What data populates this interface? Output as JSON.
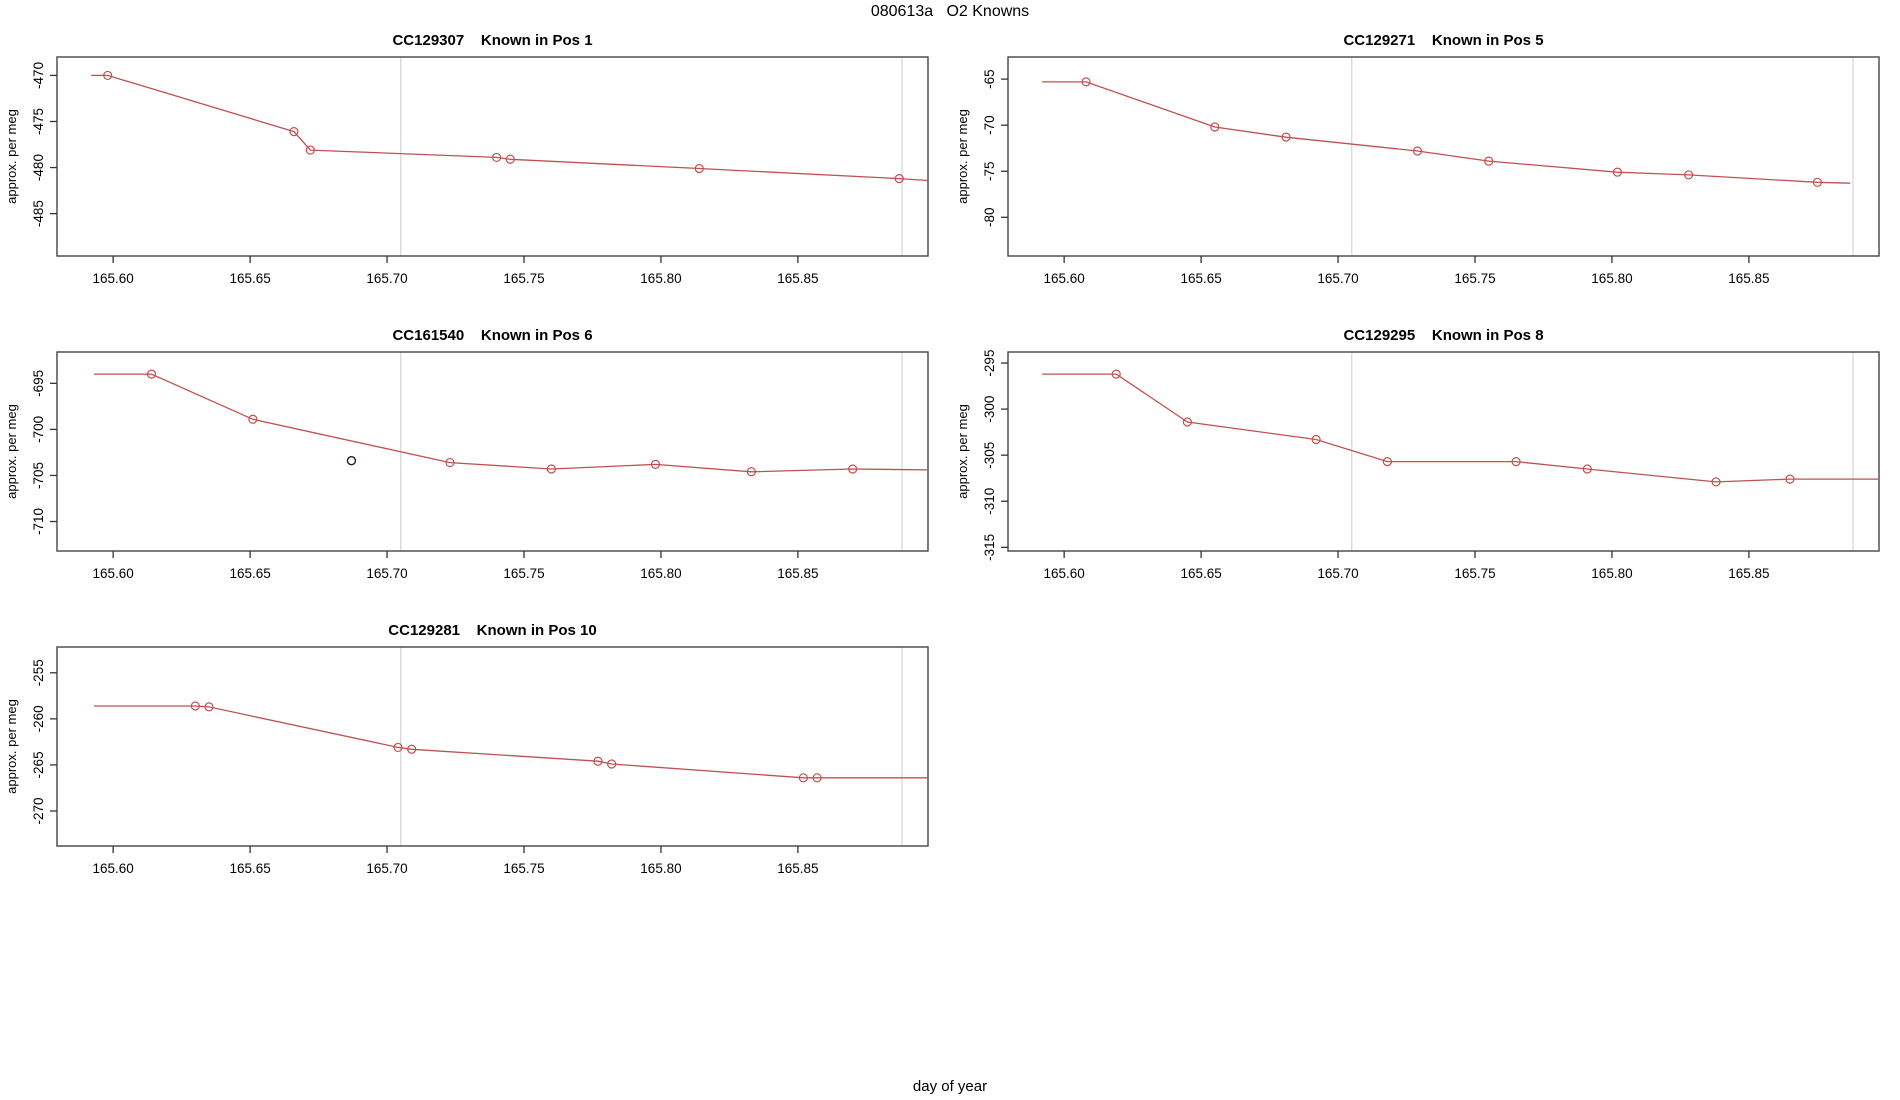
{
  "page_title": "080613a   O2 Knowns",
  "outer_xlabel": "day of year",
  "colors": {
    "line": "#c05151",
    "marker": "#c05151",
    "grid": "#d4d4d4",
    "box": "#454545",
    "tick": "#333333",
    "text": "#000000",
    "stray_point": "#2b1a1a"
  },
  "chart_data": [
    {
      "type": "line",
      "title": "CC129307    Known in Pos 1",
      "ylabel": "approx. per meg",
      "xlim": [
        165.5795,
        165.8975
      ],
      "ylim": [
        -489.6,
        -468.0
      ],
      "xticks": {
        "values": [
          165.6,
          165.65,
          165.7,
          165.75,
          165.8,
          165.85
        ],
        "labels": [
          "165.60",
          "165.65",
          "165.70",
          "165.75",
          "165.80",
          "165.85"
        ]
      },
      "yticks": {
        "values": [
          -485,
          -480,
          -475,
          -470
        ],
        "labels": [
          "-485",
          "-480",
          "-475",
          "-470"
        ]
      },
      "vlines": [
        165.705,
        165.888
      ],
      "line": [
        [
          165.592,
          -470.0
        ],
        [
          165.598,
          -470.0
        ],
        [
          165.666,
          -476.1
        ],
        [
          165.672,
          -478.1
        ],
        [
          165.74,
          -478.9
        ],
        [
          165.745,
          -479.1
        ],
        [
          165.814,
          -480.1
        ],
        [
          165.887,
          -481.2
        ],
        [
          165.8975,
          -481.4
        ]
      ],
      "markers": [
        [
          165.598,
          -470.0
        ],
        [
          165.666,
          -476.1
        ],
        [
          165.672,
          -478.1
        ],
        [
          165.74,
          -478.9
        ],
        [
          165.745,
          -479.1
        ],
        [
          165.814,
          -480.1
        ],
        [
          165.887,
          -481.2
        ]
      ],
      "extra_points": []
    },
    {
      "type": "line",
      "title": "CC129271    Known in Pos 5",
      "ylabel": "approx. per meg",
      "xlim": [
        165.5795,
        165.8975
      ],
      "ylim": [
        -84.2,
        -62.6
      ],
      "xticks": {
        "values": [
          165.6,
          165.65,
          165.7,
          165.75,
          165.8,
          165.85
        ],
        "labels": [
          "165.60",
          "165.65",
          "165.70",
          "165.75",
          "165.80",
          "165.85"
        ]
      },
      "yticks": {
        "values": [
          -80,
          -75,
          -70,
          -65
        ],
        "labels": [
          "-80",
          "-75",
          "-70",
          "-65"
        ]
      },
      "vlines": [
        165.705,
        165.888
      ],
      "line": [
        [
          165.592,
          -65.3
        ],
        [
          165.608,
          -65.3
        ],
        [
          165.655,
          -70.2
        ],
        [
          165.681,
          -71.3
        ],
        [
          165.729,
          -72.8
        ],
        [
          165.755,
          -73.9
        ],
        [
          165.802,
          -75.1
        ],
        [
          165.828,
          -75.4
        ],
        [
          165.875,
          -76.2
        ],
        [
          165.887,
          -76.3
        ]
      ],
      "markers": [
        [
          165.608,
          -65.3
        ],
        [
          165.655,
          -70.2
        ],
        [
          165.681,
          -71.3
        ],
        [
          165.729,
          -72.8
        ],
        [
          165.755,
          -73.9
        ],
        [
          165.802,
          -75.1
        ],
        [
          165.828,
          -75.4
        ],
        [
          165.875,
          -76.2
        ]
      ],
      "extra_points": []
    },
    {
      "type": "line",
      "title": "CC161540    Known in Pos 6",
      "ylabel": "approx. per meg",
      "xlim": [
        165.5795,
        165.8975
      ],
      "ylim": [
        -713.2,
        -691.6
      ],
      "xticks": {
        "values": [
          165.6,
          165.65,
          165.7,
          165.75,
          165.8,
          165.85
        ],
        "labels": [
          "165.60",
          "165.65",
          "165.70",
          "165.75",
          "165.80",
          "165.85"
        ]
      },
      "yticks": {
        "values": [
          -710,
          -705,
          -700,
          -695
        ],
        "labels": [
          "-710",
          "-705",
          "-700",
          "-695"
        ]
      },
      "vlines": [
        165.705,
        165.888
      ],
      "line": [
        [
          165.593,
          -694.0
        ],
        [
          165.614,
          -694.0
        ],
        [
          165.651,
          -698.9
        ],
        [
          165.723,
          -703.6
        ],
        [
          165.76,
          -704.3
        ],
        [
          165.798,
          -703.8
        ],
        [
          165.833,
          -704.6
        ],
        [
          165.87,
          -704.3
        ],
        [
          165.8975,
          -704.4
        ]
      ],
      "markers": [
        [
          165.614,
          -694.0
        ],
        [
          165.651,
          -698.9
        ],
        [
          165.723,
          -703.6
        ],
        [
          165.76,
          -704.3
        ],
        [
          165.798,
          -703.8
        ],
        [
          165.833,
          -704.6
        ],
        [
          165.87,
          -704.3
        ]
      ],
      "extra_points": [
        [
          165.687,
          -703.4
        ]
      ]
    },
    {
      "type": "line",
      "title": "CC129295    Known in Pos 8",
      "ylabel": "approx. per meg",
      "xlim": [
        165.5795,
        165.8975
      ],
      "ylim": [
        -315.4,
        -293.8
      ],
      "xticks": {
        "values": [
          165.6,
          165.65,
          165.7,
          165.75,
          165.8,
          165.85
        ],
        "labels": [
          "165.60",
          "165.65",
          "165.70",
          "165.75",
          "165.80",
          "165.85"
        ]
      },
      "yticks": {
        "values": [
          -315,
          -310,
          -305,
          -300,
          -295
        ],
        "labels": [
          "-315",
          "-310",
          "-305",
          "-300",
          "-295"
        ]
      },
      "vlines": [
        165.705,
        165.888
      ],
      "line": [
        [
          165.592,
          -296.2
        ],
        [
          165.619,
          -296.2
        ],
        [
          165.645,
          -301.4
        ],
        [
          165.692,
          -303.3
        ],
        [
          165.718,
          -305.7
        ],
        [
          165.765,
          -305.7
        ],
        [
          165.791,
          -306.5
        ],
        [
          165.838,
          -307.9
        ],
        [
          165.865,
          -307.6
        ],
        [
          165.8975,
          -307.6
        ]
      ],
      "markers": [
        [
          165.619,
          -296.2
        ],
        [
          165.645,
          -301.4
        ],
        [
          165.692,
          -303.3
        ],
        [
          165.718,
          -305.7
        ],
        [
          165.765,
          -305.7
        ],
        [
          165.791,
          -306.5
        ],
        [
          165.838,
          -307.9
        ],
        [
          165.865,
          -307.6
        ]
      ],
      "extra_points": []
    },
    {
      "type": "line",
      "title": "CC129281    Known in Pos 10",
      "ylabel": "approx. per meg",
      "xlim": [
        165.5795,
        165.8975
      ],
      "ylim": [
        -273.8,
        -252.2
      ],
      "xticks": {
        "values": [
          165.6,
          165.65,
          165.7,
          165.75,
          165.8,
          165.85
        ],
        "labels": [
          "165.60",
          "165.65",
          "165.70",
          "165.75",
          "165.80",
          "165.85"
        ]
      },
      "yticks": {
        "values": [
          -270,
          -265,
          -260,
          -255
        ],
        "labels": [
          "-270",
          "-265",
          "-260",
          "-255"
        ]
      },
      "vlines": [
        165.705,
        165.888
      ],
      "line": [
        [
          165.593,
          -258.6
        ],
        [
          165.63,
          -258.6
        ],
        [
          165.635,
          -258.7
        ],
        [
          165.704,
          -263.1
        ],
        [
          165.709,
          -263.3
        ],
        [
          165.777,
          -264.6
        ],
        [
          165.782,
          -264.9
        ],
        [
          165.852,
          -266.4
        ],
        [
          165.857,
          -266.4
        ],
        [
          165.8975,
          -266.4
        ]
      ],
      "markers": [
        [
          165.63,
          -258.6
        ],
        [
          165.635,
          -258.7
        ],
        [
          165.704,
          -263.1
        ],
        [
          165.709,
          -263.3
        ],
        [
          165.777,
          -264.6
        ],
        [
          165.782,
          -264.9
        ],
        [
          165.852,
          -266.4
        ],
        [
          165.857,
          -266.4
        ]
      ],
      "extra_points": []
    }
  ]
}
